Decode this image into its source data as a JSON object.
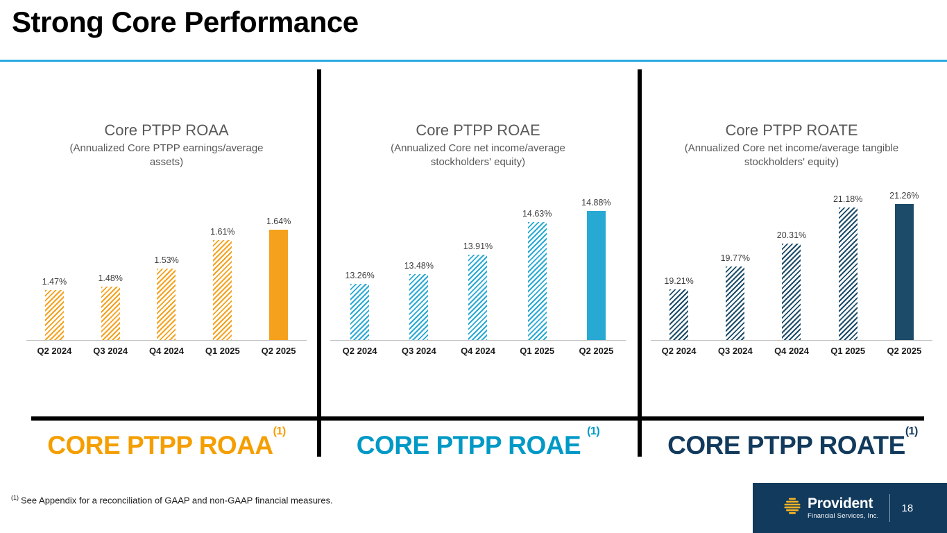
{
  "title": "Strong Core Performance",
  "chart_data": [
    {
      "type": "bar",
      "title": "Core PTPP ROAA",
      "subtitle": "(Annualized Core PTPP earnings/average assets)",
      "categories": [
        "Q2 2024",
        "Q3 2024",
        "Q4 2024",
        "Q1 2025",
        "Q2 2025"
      ],
      "values": [
        1.47,
        1.48,
        1.53,
        1.61,
        1.64
      ],
      "value_labels": [
        "1.47%",
        "1.48%",
        "1.53%",
        "1.61%",
        "1.64%"
      ],
      "ylim": [
        1.33,
        1.72
      ],
      "hatched": [
        true,
        true,
        true,
        true,
        false
      ],
      "bar_color": "#F5A11D",
      "big_label": "CORE PTPP ROAA",
      "big_label_sup": "(1)",
      "label_color": "#F49E00",
      "legend": "none",
      "grid": "off"
    },
    {
      "type": "bar",
      "title": "Core PTPP ROAE",
      "subtitle": "(Annualized Core net income/average stockholders' equity)",
      "categories": [
        "Q2 2024",
        "Q3 2024",
        "Q4 2024",
        "Q1 2025",
        "Q2 2025"
      ],
      "values": [
        13.26,
        13.48,
        13.91,
        14.63,
        14.88
      ],
      "value_labels": [
        "13.26%",
        "13.48%",
        "13.91%",
        "14.63%",
        "14.88%"
      ],
      "ylim": [
        12.0,
        15.1
      ],
      "hatched": [
        true,
        true,
        true,
        true,
        false
      ],
      "bar_color": "#28A9D4",
      "big_label": "CORE PTPP ROAE",
      "big_label_sup": "(1)",
      "label_color": "#0099C6",
      "legend": "none",
      "grid": "off"
    },
    {
      "type": "bar",
      "title": "Core PTPP ROATE",
      "subtitle": "(Annualized Core net income/average tangible stockholders' equity)",
      "categories": [
        "Q2 2024",
        "Q3 2024",
        "Q4 2024",
        "Q1 2025",
        "Q2 2025"
      ],
      "values": [
        19.21,
        19.77,
        20.31,
        21.18,
        21.26
      ],
      "value_labels": [
        "19.21%",
        "19.77%",
        "20.31%",
        "21.18%",
        "21.26%"
      ],
      "ylim": [
        18.0,
        21.5
      ],
      "hatched": [
        true,
        true,
        true,
        true,
        false
      ],
      "bar_color": "#1B4B68",
      "big_label": "CORE PTPP ROATE",
      "big_label_sup": "(1)",
      "label_color": "#123A5C",
      "legend": "none",
      "grid": "off"
    }
  ],
  "footnote": {
    "sup": "(1)",
    "text": "See Appendix for a reconciliation of GAAP and non-GAAP financial measures."
  },
  "footer": {
    "logo_icon": "provident-stacked-bars-icon",
    "logo_title": "Provident",
    "logo_subtitle": "Financial Services, Inc.",
    "page_number": "18"
  },
  "colors": {
    "top_rule": "#29ABE2",
    "divider": "#000000",
    "footer_bg": "#113A5C",
    "logo_gold": "#F5B324",
    "chart_title_gray": "#595959"
  }
}
